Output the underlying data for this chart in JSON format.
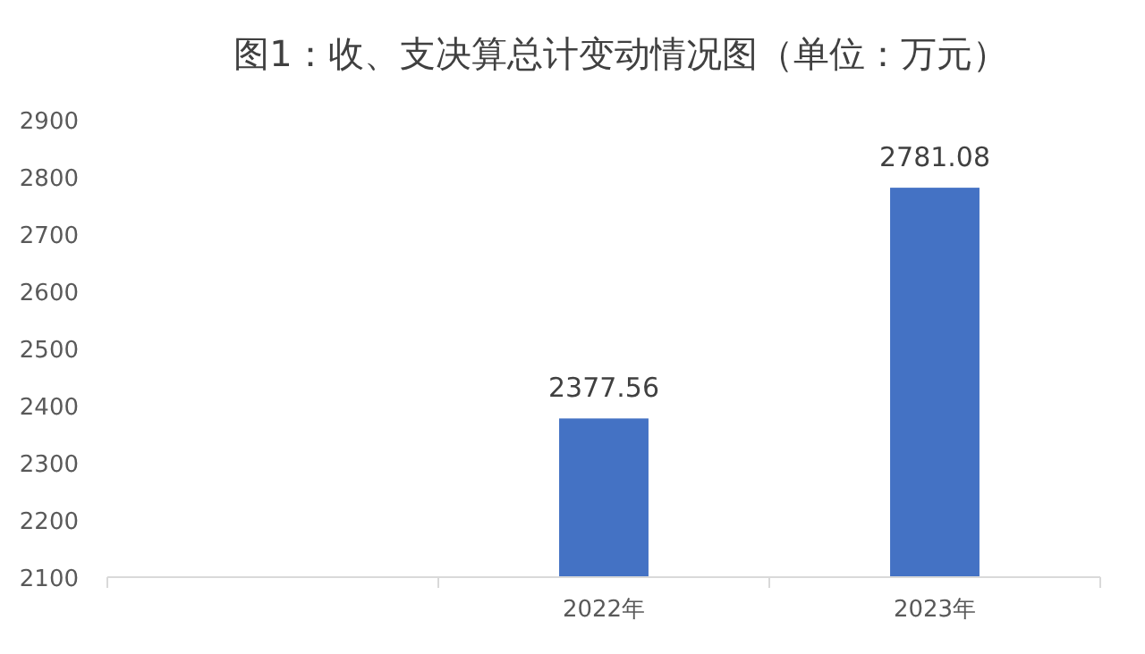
{
  "chart_data": {
    "type": "bar",
    "title": "图1：收、支决算总计变动情况图（单位：万元）",
    "categories": [
      null,
      "2022年",
      "2023年"
    ],
    "values": [
      null,
      2377.56,
      2781.08
    ],
    "color": "#4472c4",
    "ylim": [
      2100,
      2900
    ],
    "yticks": [
      2100,
      2200,
      2300,
      2400,
      2500,
      2600,
      2700,
      2800,
      2900
    ],
    "data_labels": true,
    "grid": false
  }
}
